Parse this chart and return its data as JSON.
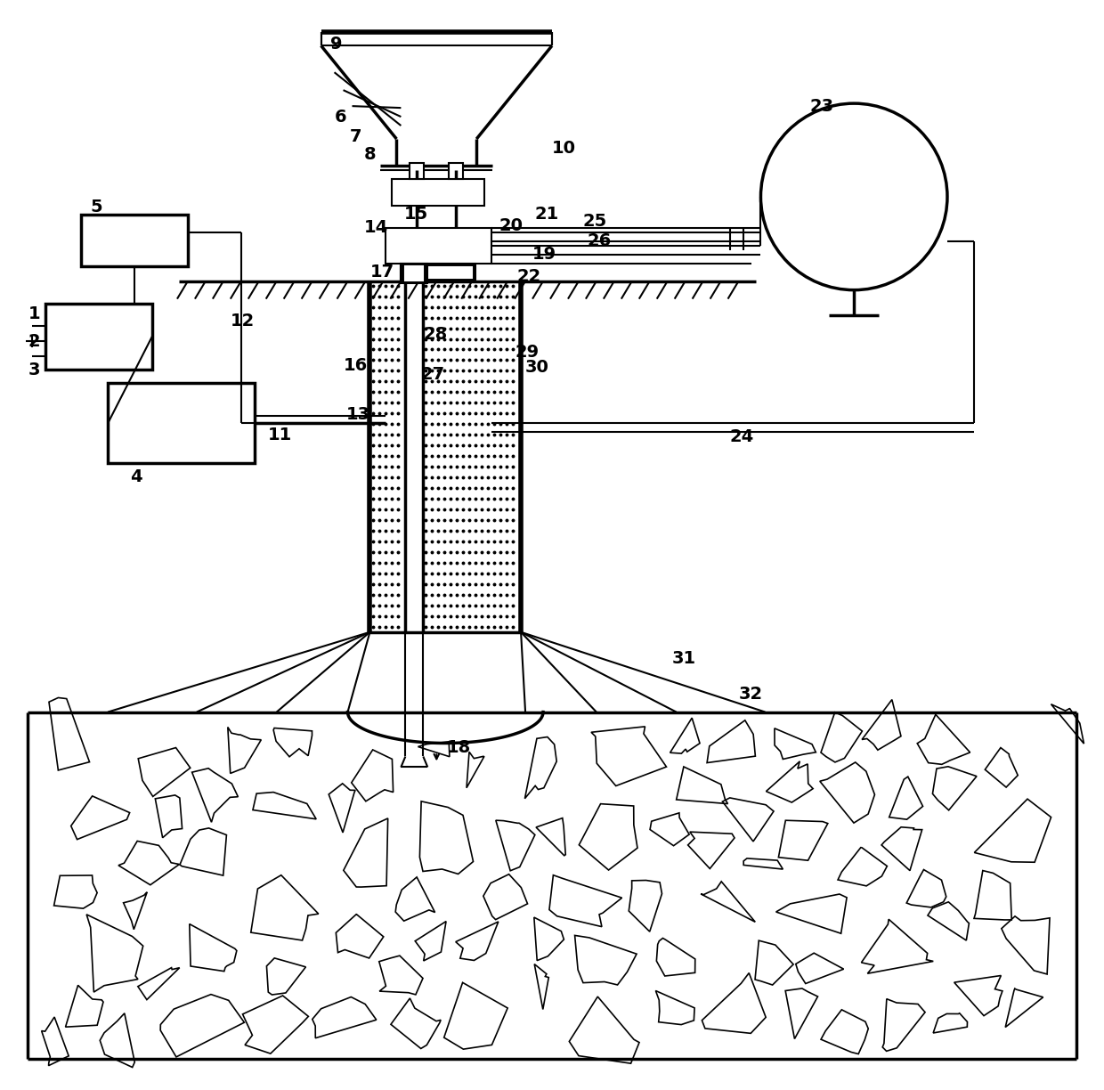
{
  "bg_color": "#ffffff",
  "line_color": "#000000",
  "fig_width": 12.4,
  "fig_height": 12.24
}
